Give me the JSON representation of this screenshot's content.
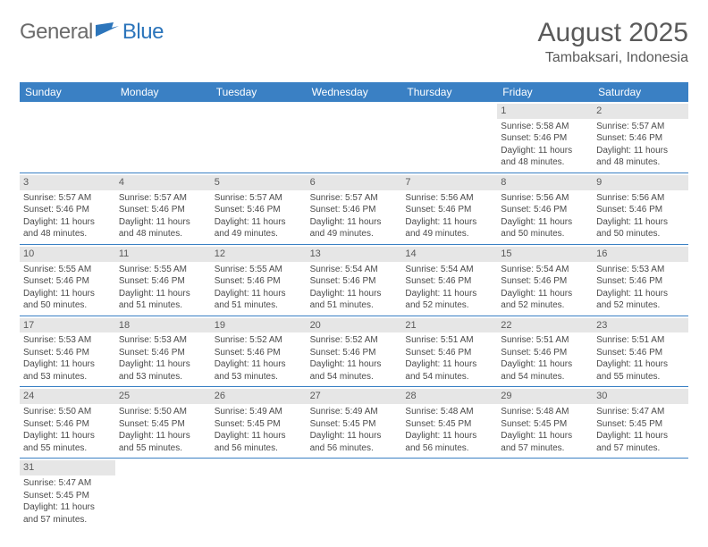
{
  "logo": {
    "general": "General",
    "blue": "Blue"
  },
  "title": "August 2025",
  "location": "Tambaksari, Indonesia",
  "colors": {
    "header_bg": "#3a80c4",
    "header_text": "#ffffff",
    "cell_border": "#3a80c4",
    "daynum_bg": "#e6e6e6",
    "text": "#4a4a4a",
    "title_text": "#5a5a5a",
    "logo_gray": "#6b6b6b",
    "logo_blue": "#2c75bb"
  },
  "weekdays": [
    "Sunday",
    "Monday",
    "Tuesday",
    "Wednesday",
    "Thursday",
    "Friday",
    "Saturday"
  ],
  "grid": {
    "leading_blanks": 5,
    "trailing_blanks": 6
  },
  "days": [
    {
      "n": "1",
      "sr": "5:58 AM",
      "ss": "5:46 PM",
      "dl": "11 hours and 48 minutes."
    },
    {
      "n": "2",
      "sr": "5:57 AM",
      "ss": "5:46 PM",
      "dl": "11 hours and 48 minutes."
    },
    {
      "n": "3",
      "sr": "5:57 AM",
      "ss": "5:46 PM",
      "dl": "11 hours and 48 minutes."
    },
    {
      "n": "4",
      "sr": "5:57 AM",
      "ss": "5:46 PM",
      "dl": "11 hours and 48 minutes."
    },
    {
      "n": "5",
      "sr": "5:57 AM",
      "ss": "5:46 PM",
      "dl": "11 hours and 49 minutes."
    },
    {
      "n": "6",
      "sr": "5:57 AM",
      "ss": "5:46 PM",
      "dl": "11 hours and 49 minutes."
    },
    {
      "n": "7",
      "sr": "5:56 AM",
      "ss": "5:46 PM",
      "dl": "11 hours and 49 minutes."
    },
    {
      "n": "8",
      "sr": "5:56 AM",
      "ss": "5:46 PM",
      "dl": "11 hours and 50 minutes."
    },
    {
      "n": "9",
      "sr": "5:56 AM",
      "ss": "5:46 PM",
      "dl": "11 hours and 50 minutes."
    },
    {
      "n": "10",
      "sr": "5:55 AM",
      "ss": "5:46 PM",
      "dl": "11 hours and 50 minutes."
    },
    {
      "n": "11",
      "sr": "5:55 AM",
      "ss": "5:46 PM",
      "dl": "11 hours and 51 minutes."
    },
    {
      "n": "12",
      "sr": "5:55 AM",
      "ss": "5:46 PM",
      "dl": "11 hours and 51 minutes."
    },
    {
      "n": "13",
      "sr": "5:54 AM",
      "ss": "5:46 PM",
      "dl": "11 hours and 51 minutes."
    },
    {
      "n": "14",
      "sr": "5:54 AM",
      "ss": "5:46 PM",
      "dl": "11 hours and 52 minutes."
    },
    {
      "n": "15",
      "sr": "5:54 AM",
      "ss": "5:46 PM",
      "dl": "11 hours and 52 minutes."
    },
    {
      "n": "16",
      "sr": "5:53 AM",
      "ss": "5:46 PM",
      "dl": "11 hours and 52 minutes."
    },
    {
      "n": "17",
      "sr": "5:53 AM",
      "ss": "5:46 PM",
      "dl": "11 hours and 53 minutes."
    },
    {
      "n": "18",
      "sr": "5:53 AM",
      "ss": "5:46 PM",
      "dl": "11 hours and 53 minutes."
    },
    {
      "n": "19",
      "sr": "5:52 AM",
      "ss": "5:46 PM",
      "dl": "11 hours and 53 minutes."
    },
    {
      "n": "20",
      "sr": "5:52 AM",
      "ss": "5:46 PM",
      "dl": "11 hours and 54 minutes."
    },
    {
      "n": "21",
      "sr": "5:51 AM",
      "ss": "5:46 PM",
      "dl": "11 hours and 54 minutes."
    },
    {
      "n": "22",
      "sr": "5:51 AM",
      "ss": "5:46 PM",
      "dl": "11 hours and 54 minutes."
    },
    {
      "n": "23",
      "sr": "5:51 AM",
      "ss": "5:46 PM",
      "dl": "11 hours and 55 minutes."
    },
    {
      "n": "24",
      "sr": "5:50 AM",
      "ss": "5:46 PM",
      "dl": "11 hours and 55 minutes."
    },
    {
      "n": "25",
      "sr": "5:50 AM",
      "ss": "5:45 PM",
      "dl": "11 hours and 55 minutes."
    },
    {
      "n": "26",
      "sr": "5:49 AM",
      "ss": "5:45 PM",
      "dl": "11 hours and 56 minutes."
    },
    {
      "n": "27",
      "sr": "5:49 AM",
      "ss": "5:45 PM",
      "dl": "11 hours and 56 minutes."
    },
    {
      "n": "28",
      "sr": "5:48 AM",
      "ss": "5:45 PM",
      "dl": "11 hours and 56 minutes."
    },
    {
      "n": "29",
      "sr": "5:48 AM",
      "ss": "5:45 PM",
      "dl": "11 hours and 57 minutes."
    },
    {
      "n": "30",
      "sr": "5:47 AM",
      "ss": "5:45 PM",
      "dl": "11 hours and 57 minutes."
    },
    {
      "n": "31",
      "sr": "5:47 AM",
      "ss": "5:45 PM",
      "dl": "11 hours and 57 minutes."
    }
  ],
  "labels": {
    "sunrise": "Sunrise: ",
    "sunset": "Sunset: ",
    "daylight": "Daylight: "
  }
}
